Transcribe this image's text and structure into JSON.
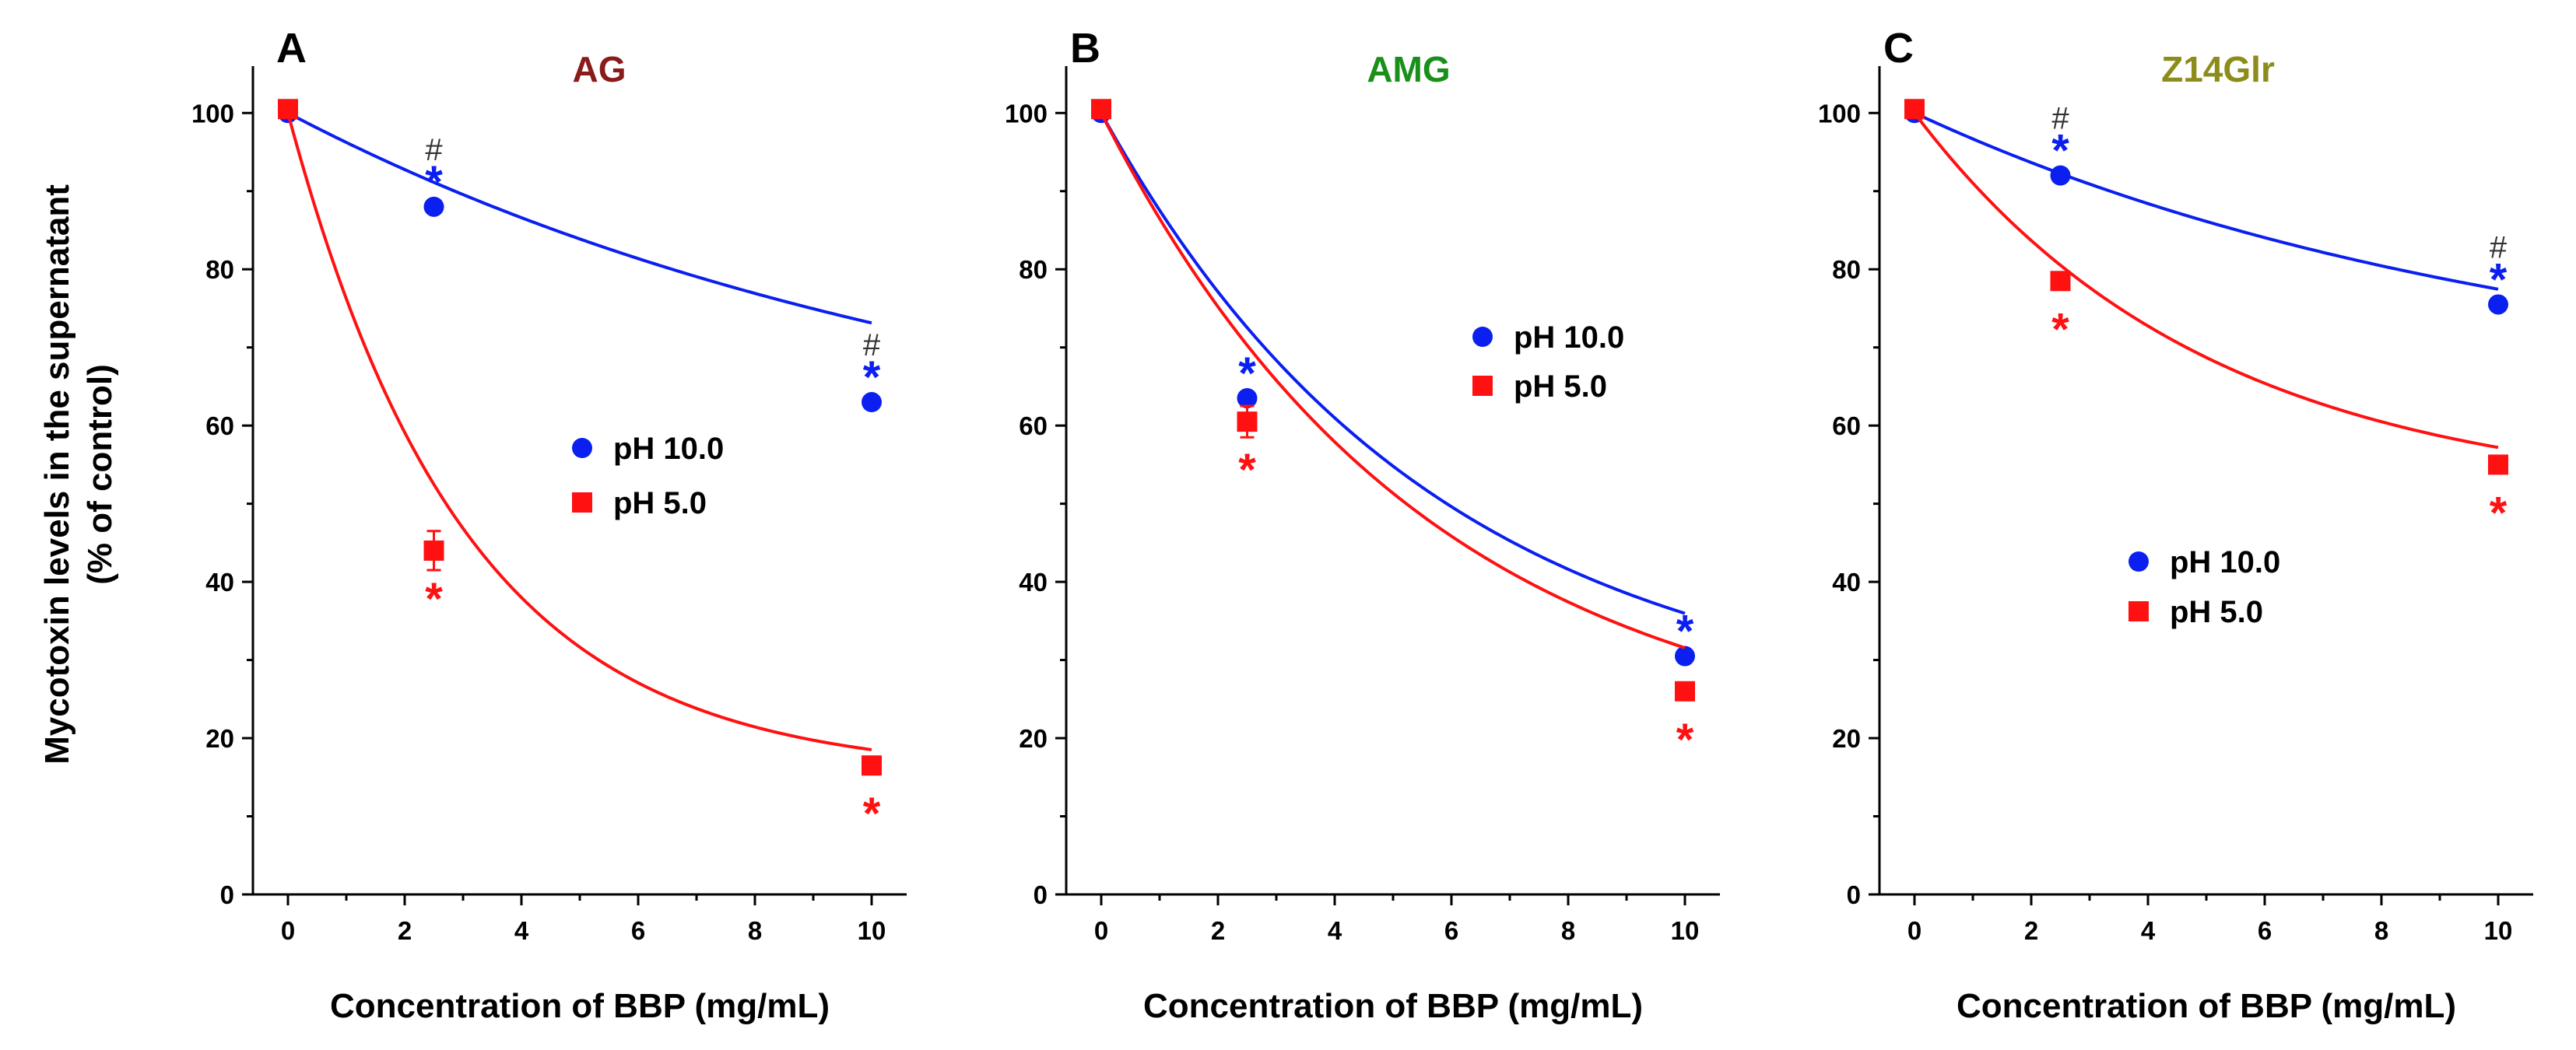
{
  "y_axis_label": "Mycotoxin levels in the supernatant",
  "y_axis_sublabel": "(% of control)",
  "chart_data": [
    {
      "type": "line",
      "panel": "A",
      "title": "AG",
      "title_color": "#8b1a1a",
      "xlabel": "Concentration of BBP (mg/mL)",
      "xlim": [
        0,
        10
      ],
      "ylim": [
        0,
        100
      ],
      "xticks": [
        0,
        2,
        4,
        6,
        8,
        10
      ],
      "yticks": [
        0,
        20,
        40,
        60,
        80,
        100
      ],
      "legend_position": "center-right",
      "series": [
        {
          "name": "pH 10.0",
          "marker": "circle",
          "color": "#0a1ff0",
          "x": [
            0,
            2.5,
            10
          ],
          "values": [
            100,
            88,
            63
          ],
          "errors": [
            0,
            0,
            0
          ],
          "fit": {
            "y0": 51.6,
            "A": 48.4,
            "k": 0.081
          },
          "annotations": [
            {
              "x": 2.5,
              "stars": "*",
              "hash": "#"
            },
            {
              "x": 10,
              "stars": "*",
              "hash": "#"
            }
          ]
        },
        {
          "name": "pH 5.0",
          "marker": "square",
          "color": "#ff1111",
          "x": [
            0,
            2.5,
            10
          ],
          "values": [
            100.5,
            44,
            16.5
          ],
          "errors": [
            0.5,
            2.5,
            0.8
          ],
          "fit": {
            "y0": 15.4,
            "A": 84.6,
            "k": 0.33
          },
          "annotations": [
            {
              "x": 2.5,
              "stars": "*",
              "hash": ""
            },
            {
              "x": 10,
              "stars": "*",
              "hash": ""
            }
          ]
        }
      ]
    },
    {
      "type": "line",
      "panel": "B",
      "title": "AMG",
      "title_color": "#1a8f1a",
      "xlabel": "Concentration of BBP (mg/mL)",
      "xlim": [
        0,
        10
      ],
      "ylim": [
        0,
        100
      ],
      "xticks": [
        0,
        2,
        4,
        6,
        8,
        10
      ],
      "yticks": [
        0,
        20,
        40,
        60,
        80,
        100
      ],
      "legend_position": "center-right",
      "series": [
        {
          "name": "pH 10.0",
          "marker": "circle",
          "color": "#0a1ff0",
          "x": [
            0,
            2.5,
            10
          ],
          "values": [
            100,
            63.5,
            30.5
          ],
          "errors": [
            0,
            0.8,
            0.5
          ],
          "fit": {
            "y0": 22.5,
            "A": 77.5,
            "k": 0.175
          },
          "annotations": [
            {
              "x": 2.5,
              "stars": "*",
              "hash": ""
            },
            {
              "x": 10,
              "stars": "*",
              "hash": ""
            }
          ]
        },
        {
          "name": "pH 5.0",
          "marker": "square",
          "color": "#ff1111",
          "x": [
            0,
            2.5,
            10
          ],
          "values": [
            100.5,
            60.5,
            26
          ],
          "errors": [
            0.5,
            2,
            0.8
          ],
          "fit": {
            "y0": 18,
            "A": 82,
            "k": 0.18
          },
          "annotations": [
            {
              "x": 2.5,
              "stars": "*",
              "hash": ""
            },
            {
              "x": 10,
              "stars": "*",
              "hash": ""
            }
          ]
        }
      ]
    },
    {
      "type": "line",
      "panel": "C",
      "title": "Z14Glr",
      "title_color": "#8c8c1a",
      "xlabel": "Concentration of BBP (mg/mL)",
      "xlim": [
        0,
        10
      ],
      "ylim": [
        0,
        100
      ],
      "xticks": [
        0,
        2,
        4,
        6,
        8,
        10
      ],
      "yticks": [
        0,
        20,
        40,
        60,
        80,
        100
      ],
      "legend_position": "lower-center",
      "series": [
        {
          "name": "pH 10.0",
          "marker": "circle",
          "color": "#0a1ff0",
          "x": [
            0,
            2.5,
            10
          ],
          "values": [
            100,
            92,
            75.5
          ],
          "errors": [
            0,
            0,
            0
          ],
          "fit": {
            "y0": 63,
            "A": 37,
            "k": 0.094
          },
          "annotations": [
            {
              "x": 2.5,
              "stars": "*",
              "hash": "#"
            },
            {
              "x": 10,
              "stars": "*",
              "hash": "#"
            }
          ]
        },
        {
          "name": "pH 5.0",
          "marker": "square",
          "color": "#ff1111",
          "x": [
            0,
            2.5,
            10
          ],
          "values": [
            100.5,
            78.5,
            55
          ],
          "errors": [
            0.5,
            1,
            0.5
          ],
          "fit": {
            "y0": 50.5,
            "A": 49.5,
            "k": 0.2
          },
          "annotations": [
            {
              "x": 2.5,
              "stars": "*",
              "hash": ""
            },
            {
              "x": 10,
              "stars": "*",
              "hash": ""
            }
          ]
        }
      ]
    }
  ]
}
